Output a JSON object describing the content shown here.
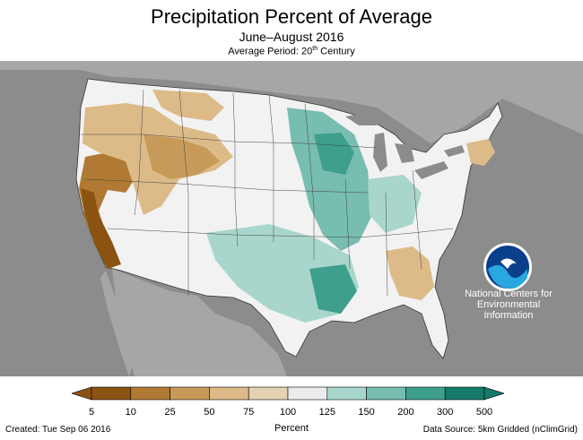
{
  "title": "Precipitation Percent of Average",
  "subtitle": "June–August 2016",
  "period_prefix": "Average Period: 20",
  "period_sup": "th",
  "period_suffix": " Century",
  "legend": {
    "ticks": [
      "5",
      "10",
      "25",
      "50",
      "75",
      "100",
      "125",
      "150",
      "200",
      "300",
      "500"
    ],
    "colors": [
      "#8a5312",
      "#b07a34",
      "#c89a5a",
      "#dcbb88",
      "#e4d2b2",
      "#ffffff",
      "#ececec",
      "#a9d6cc",
      "#77bdb0",
      "#3e9f8d",
      "#157a6a"
    ],
    "title": "Percent"
  },
  "noaa": {
    "logo_text": "NOAA",
    "line1": "National Centers for",
    "line2": "Environmental",
    "line3": "Information"
  },
  "footer": {
    "created": "Created: Tue Sep 06 2016",
    "datasource": "Data Source: 5km Gridded (nClimGrid)"
  },
  "colors": {
    "background_land": "#a6a6a6",
    "ocean": "#8c8c8c",
    "us_base": "#f2f2f2",
    "state_lines": "#444444"
  }
}
